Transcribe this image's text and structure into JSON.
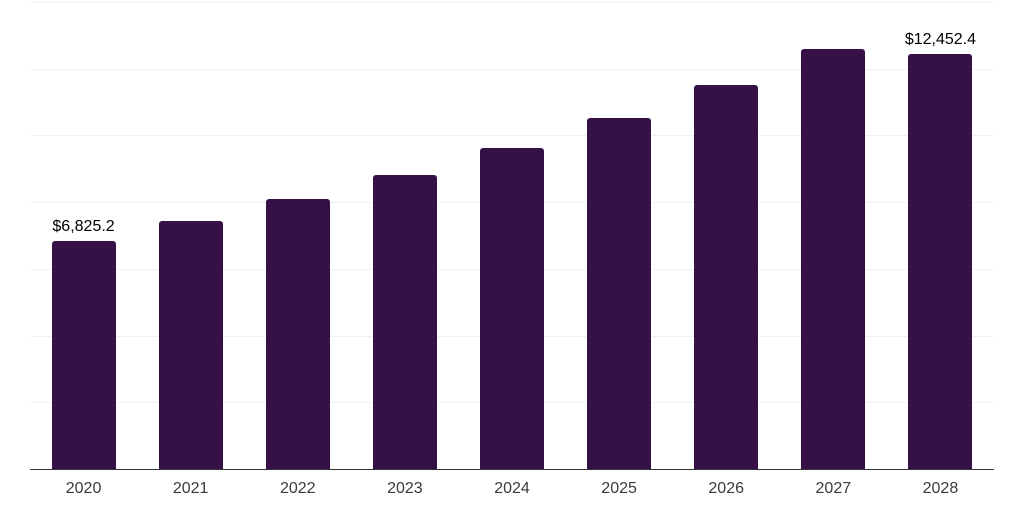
{
  "chart_data": {
    "type": "bar",
    "title": "",
    "xlabel": "",
    "ylabel": "",
    "categories": [
      "2020",
      "2021",
      "2022",
      "2023",
      "2024",
      "2025",
      "2026",
      "2027",
      "2028"
    ],
    "values": [
      6825.2,
      7450,
      8090,
      8810,
      9620,
      10520,
      11520,
      12590,
      12452.4
    ],
    "bar_labels": [
      "$6,825.2",
      "",
      "",
      "",
      "",
      "",
      "",
      "",
      "$12,452.4"
    ],
    "first_bar_label": "$6,825.2",
    "last_bar_label": "$12,452.4",
    "ylim": [
      0,
      14000
    ],
    "gridline_step": 2000,
    "grid": true,
    "legend": false,
    "layout": {
      "legend_position": "none",
      "y_axis_labels_visible": false,
      "value_labels_visible_on": [
        "2020",
        "2028"
      ]
    },
    "colors": {
      "bar": "#351147",
      "gridline": "#f0f0f0",
      "axis_line": "#333333",
      "tick_label": "#3a3a3a",
      "value_label": "#000000",
      "background": "#ffffff"
    }
  }
}
